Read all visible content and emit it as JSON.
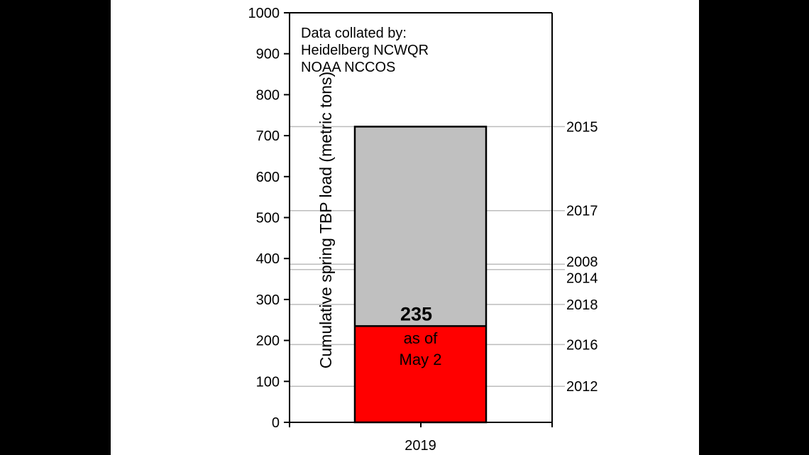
{
  "chart_data": {
    "type": "bar",
    "categories": [
      "2019"
    ],
    "series": [
      {
        "values": [
          235
        ],
        "color": "#ff0000"
      },
      {
        "values": [
          487
        ],
        "color": "#c0c0c0"
      }
    ],
    "total": 722,
    "ylabel": "Cumulative spring TBP load (metric tons)",
    "xlabel": "",
    "ylim": [
      0,
      1000
    ],
    "yticks": [
      0,
      100,
      200,
      300,
      400,
      500,
      600,
      700,
      800,
      900,
      1000
    ],
    "grid": false,
    "value_label": "235",
    "value_note": [
      "as of",
      "May 2"
    ],
    "source_lines": [
      "Data collated by:",
      "Heidelberg NCWQR",
      "NOAA NCCOS"
    ],
    "reference_lines": [
      {
        "year": "2015",
        "value": 722
      },
      {
        "year": "2017",
        "value": 517
      },
      {
        "year": "2008",
        "value": 386
      },
      {
        "year": "2014",
        "value": 373
      },
      {
        "year": "2018",
        "value": 288
      },
      {
        "year": "2016",
        "value": 190
      },
      {
        "year": "2012",
        "value": 88
      }
    ],
    "reference_line_color": "#bdbdbd"
  }
}
